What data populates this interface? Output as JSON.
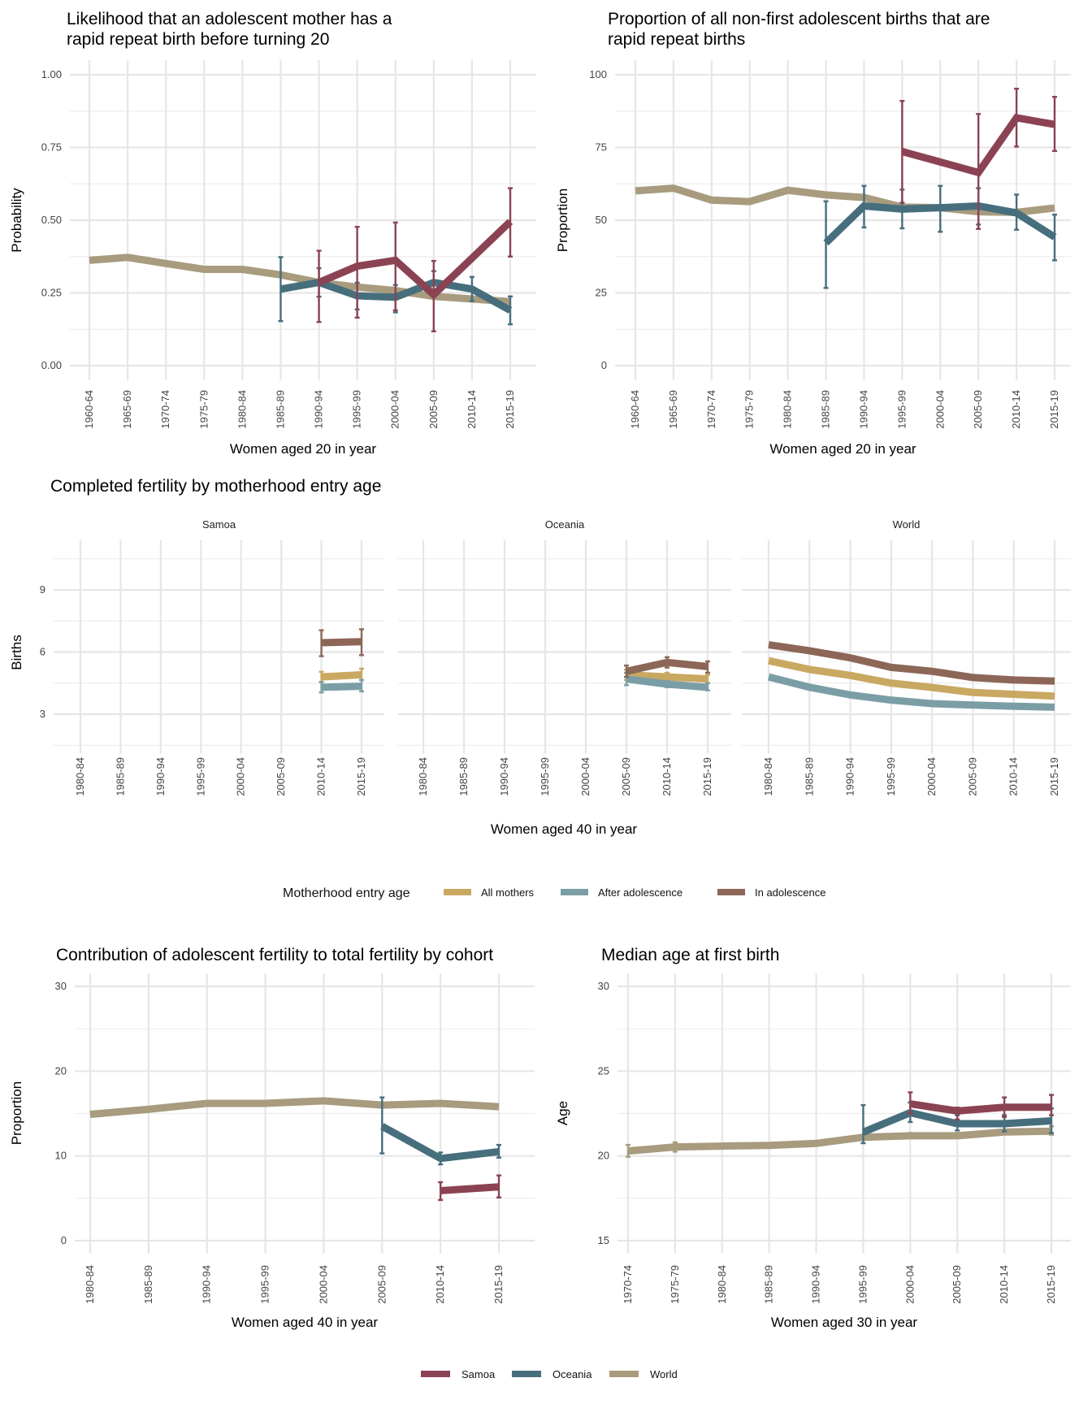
{
  "colors": {
    "Samoa": "#8B4353",
    "Oceania": "#476E7D",
    "World": "#A89B7E",
    "All mothers": "#C9A861",
    "After adolescence": "#7B9EA6",
    "In adolescence": "#8C6657"
  },
  "legend_bottom": {
    "entries": [
      "Samoa",
      "Oceania",
      "World"
    ]
  },
  "legend_fertility": {
    "title": "Motherhood entry age",
    "entries": [
      "All mothers",
      "After adolescence",
      "In adolescence"
    ]
  },
  "chart_data": [
    {
      "id": "rapid-repeat-likelihood",
      "type": "line",
      "title": [
        "Likelihood that an adolescent mother has a",
        "rapid repeat birth before turning 20"
      ],
      "xlabel": "Women aged 20 in year",
      "ylabel": "Probability",
      "categories": [
        "1960-64",
        "1965-69",
        "1970-74",
        "1975-79",
        "1980-84",
        "1985-89",
        "1990-94",
        "1995-99",
        "2000-04",
        "2005-09",
        "2010-14",
        "2015-19"
      ],
      "yticks": [
        "0.00",
        "0.25",
        "0.50",
        "0.75",
        "1.00"
      ],
      "ytick_values": [
        0,
        0.25,
        0.5,
        0.75,
        1.0
      ],
      "ylim": [
        -0.05,
        1.05
      ],
      "grid": true,
      "series": [
        {
          "name": "World",
          "values": [
            0.362,
            0.372,
            0.351,
            0.331,
            0.331,
            0.312,
            0.286,
            0.27,
            0.258,
            0.238,
            0.229,
            0.22
          ],
          "lo": [
            null,
            null,
            null,
            null,
            null,
            null,
            null,
            null,
            null,
            null,
            null,
            null
          ],
          "hi": [
            null,
            null,
            null,
            null,
            null,
            null,
            null,
            null,
            null,
            null,
            null,
            null
          ]
        },
        {
          "name": "Oceania",
          "values": [
            null,
            null,
            null,
            null,
            null,
            0.263,
            0.286,
            0.24,
            0.235,
            0.286,
            0.263,
            0.19
          ],
          "lo": [
            null,
            null,
            null,
            null,
            null,
            0.153,
            0.237,
            0.193,
            0.183,
            0.24,
            0.222,
            0.142
          ],
          "hi": [
            null,
            null,
            null,
            null,
            null,
            0.373,
            0.335,
            0.285,
            0.277,
            0.325,
            0.305,
            0.238
          ]
        },
        {
          "name": "Samoa",
          "values": [
            null,
            null,
            null,
            null,
            null,
            null,
            0.286,
            0.342,
            0.362,
            0.244,
            null,
            0.495
          ],
          "lo": [
            null,
            null,
            null,
            null,
            null,
            null,
            0.15,
            0.165,
            0.19,
            0.118,
            null,
            0.375
          ],
          "hi": [
            null,
            null,
            null,
            null,
            null,
            null,
            0.395,
            0.477,
            0.492,
            0.36,
            null,
            0.61
          ]
        }
      ]
    },
    {
      "id": "rapid-repeat-proportion",
      "type": "line",
      "title": [
        "Proportion of all non-first adolescent births that are",
        "rapid repeat births"
      ],
      "xlabel": "Women aged 20 in year",
      "ylabel": "Proportion",
      "categories": [
        "1960-64",
        "1965-69",
        "1970-74",
        "1975-79",
        "1980-84",
        "1985-89",
        "1990-94",
        "1995-99",
        "2000-04",
        "2005-09",
        "2010-14",
        "2015-19"
      ],
      "yticks": [
        "0",
        "25",
        "50",
        "75",
        "100"
      ],
      "ytick_values": [
        0,
        25,
        50,
        75,
        100
      ],
      "ylim": [
        -5,
        105
      ],
      "grid": true,
      "series": [
        {
          "name": "World",
          "values": [
            60.1,
            61.0,
            56.9,
            56.4,
            60.3,
            58.7,
            57.8,
            54.5,
            54.3,
            52.9,
            52.7,
            54.2
          ],
          "lo": [
            null,
            null,
            null,
            null,
            null,
            null,
            null,
            null,
            null,
            null,
            null,
            null
          ],
          "hi": [
            null,
            null,
            null,
            null,
            null,
            null,
            null,
            null,
            null,
            null,
            null,
            null
          ]
        },
        {
          "name": "Oceania",
          "values": [
            null,
            null,
            null,
            null,
            null,
            42.2,
            54.9,
            53.8,
            54.3,
            54.9,
            52.5,
            44.2
          ],
          "lo": [
            null,
            null,
            null,
            null,
            null,
            26.7,
            47.5,
            47.2,
            46.0,
            48.5,
            46.7,
            36.2
          ],
          "hi": [
            null,
            null,
            null,
            null,
            null,
            56.5,
            61.8,
            60.5,
            61.8,
            61.0,
            58.8,
            51.9
          ]
        },
        {
          "name": "Samoa",
          "values": [
            null,
            null,
            null,
            null,
            null,
            null,
            null,
            73.6,
            null,
            66.4,
            85.2,
            82.9
          ],
          "lo": [
            null,
            null,
            null,
            null,
            null,
            null,
            null,
            56.0,
            null,
            47.0,
            75.3,
            73.8
          ],
          "hi": [
            null,
            null,
            null,
            null,
            null,
            null,
            null,
            91.0,
            null,
            86.5,
            95.2,
            92.4
          ]
        }
      ]
    },
    {
      "id": "completed-fertility",
      "type": "line",
      "title": [
        "Completed fertility by motherhood entry age"
      ],
      "xlabel": "Women aged 40 in year",
      "ylabel": "Births",
      "categories": [
        "1980-84",
        "1985-89",
        "1990-94",
        "1995-99",
        "2000-04",
        "2005-09",
        "2010-14",
        "2015-19"
      ],
      "yticks": [
        "3",
        "6",
        "9"
      ],
      "ytick_values": [
        3,
        6,
        9
      ],
      "ylim": [
        1.1,
        11.4
      ],
      "grid": true,
      "facets": [
        {
          "name": "Samoa",
          "series": [
            {
              "name": "All mothers",
              "values": [
                null,
                null,
                null,
                null,
                null,
                null,
                4.8,
                4.9
              ],
              "lo": [
                null,
                null,
                null,
                null,
                null,
                null,
                4.55,
                4.65
              ],
              "hi": [
                null,
                null,
                null,
                null,
                null,
                null,
                5.05,
                5.2
              ]
            },
            {
              "name": "After adolescence",
              "values": [
                null,
                null,
                null,
                null,
                null,
                null,
                4.3,
                4.35
              ],
              "lo": [
                null,
                null,
                null,
                null,
                null,
                null,
                4.05,
                4.1
              ],
              "hi": [
                null,
                null,
                null,
                null,
                null,
                null,
                4.55,
                4.65
              ]
            },
            {
              "name": "In adolescence",
              "values": [
                null,
                null,
                null,
                null,
                null,
                null,
                6.45,
                6.5
              ],
              "lo": [
                null,
                null,
                null,
                null,
                null,
                null,
                5.8,
                5.85
              ],
              "hi": [
                null,
                null,
                null,
                null,
                null,
                null,
                7.05,
                7.1
              ]
            }
          ]
        },
        {
          "name": "Oceania",
          "series": [
            {
              "name": "All mothers",
              "values": [
                null,
                null,
                null,
                null,
                null,
                4.9,
                4.8,
                4.7
              ],
              "lo": [
                null,
                null,
                null,
                null,
                null,
                4.65,
                4.6,
                4.5
              ],
              "hi": [
                null,
                null,
                null,
                null,
                null,
                5.15,
                5.0,
                4.9
              ]
            },
            {
              "name": "After adolescence",
              "values": [
                null,
                null,
                null,
                null,
                null,
                4.7,
                4.45,
                4.3
              ],
              "lo": [
                null,
                null,
                null,
                null,
                null,
                4.4,
                4.3,
                4.15
              ],
              "hi": [
                null,
                null,
                null,
                null,
                null,
                5.0,
                4.6,
                4.5
              ]
            },
            {
              "name": "In adolescence",
              "values": [
                null,
                null,
                null,
                null,
                null,
                5.07,
                5.5,
                5.3
              ],
              "lo": [
                null,
                null,
                null,
                null,
                null,
                4.8,
                5.25,
                5.0
              ],
              "hi": [
                null,
                null,
                null,
                null,
                null,
                5.35,
                5.75,
                5.55
              ]
            }
          ]
        },
        {
          "name": "World",
          "series": [
            {
              "name": "All mothers",
              "values": [
                5.58,
                5.16,
                4.87,
                4.5,
                4.29,
                4.05,
                3.96,
                3.87
              ],
              "lo": [
                null,
                null,
                null,
                null,
                null,
                null,
                null,
                null
              ],
              "hi": [
                null,
                null,
                null,
                null,
                null,
                null,
                null,
                null
              ]
            },
            {
              "name": "After adolescence",
              "values": [
                4.8,
                4.3,
                3.93,
                3.68,
                3.51,
                3.44,
                3.38,
                3.34
              ],
              "lo": [
                null,
                null,
                null,
                null,
                null,
                null,
                null,
                null
              ],
              "hi": [
                null,
                null,
                null,
                null,
                null,
                null,
                null,
                null
              ]
            },
            {
              "name": "In adolescence",
              "values": [
                6.35,
                6.06,
                5.72,
                5.26,
                5.07,
                4.77,
                4.65,
                4.6
              ],
              "lo": [
                null,
                null,
                null,
                null,
                null,
                null,
                null,
                null
              ],
              "hi": [
                null,
                null,
                null,
                null,
                null,
                null,
                null,
                null
              ]
            }
          ]
        }
      ]
    },
    {
      "id": "adolescent-contribution",
      "type": "line",
      "title": [
        "Contribution of adolescent fertility to total fertility by cohort"
      ],
      "xlabel": "Women aged 40 in year",
      "ylabel": "Proportion",
      "categories": [
        "1980-84",
        "1985-89",
        "1990-94",
        "1995-99",
        "2000-04",
        "2005-09",
        "2010-14",
        "2015-19"
      ],
      "yticks": [
        "0",
        "10",
        "20",
        "30"
      ],
      "ytick_values": [
        0,
        10,
        20,
        30
      ],
      "ylim": [
        -1.5,
        31.5
      ],
      "grid": true,
      "series": [
        {
          "name": "World",
          "values": [
            14.9,
            15.5,
            16.2,
            16.2,
            16.5,
            16.0,
            16.2,
            15.8
          ],
          "lo": [
            null,
            null,
            null,
            null,
            null,
            null,
            null,
            null
          ],
          "hi": [
            null,
            null,
            null,
            null,
            null,
            null,
            null,
            null
          ]
        },
        {
          "name": "Oceania",
          "values": [
            null,
            null,
            null,
            null,
            null,
            13.5,
            9.7,
            10.5
          ],
          "lo": [
            null,
            null,
            null,
            null,
            null,
            10.3,
            9.0,
            9.8
          ],
          "hi": [
            null,
            null,
            null,
            null,
            null,
            16.9,
            10.4,
            11.3
          ]
        },
        {
          "name": "Samoa",
          "values": [
            null,
            null,
            null,
            null,
            null,
            null,
            5.9,
            6.35
          ],
          "lo": [
            null,
            null,
            null,
            null,
            null,
            null,
            4.8,
            5.1
          ],
          "hi": [
            null,
            null,
            null,
            null,
            null,
            null,
            6.9,
            7.7
          ]
        }
      ]
    },
    {
      "id": "median-age-first-birth",
      "type": "line",
      "title": [
        "Median age at first birth"
      ],
      "xlabel": "Women aged 30 in year",
      "ylabel": "Age",
      "categories": [
        "1970-74",
        "1975-79",
        "1980-84",
        "1985-89",
        "1990-94",
        "1995-99",
        "2000-04",
        "2005-09",
        "2010-14",
        "2015-19"
      ],
      "yticks": [
        "15",
        "20",
        "25",
        "30"
      ],
      "ytick_values": [
        15,
        20,
        25,
        30
      ],
      "ylim": [
        14.25,
        30.75
      ],
      "grid": true,
      "series": [
        {
          "name": "World",
          "values": [
            20.29,
            20.53,
            20.58,
            20.62,
            20.74,
            21.1,
            21.19,
            21.19,
            21.41,
            21.46
          ],
          "lo": [
            19.95,
            20.25,
            20.45,
            20.5,
            20.65,
            20.95,
            21.05,
            21.05,
            21.3,
            21.25
          ],
          "hi": [
            20.65,
            20.8,
            20.7,
            20.75,
            20.85,
            21.25,
            21.35,
            21.35,
            21.55,
            21.75
          ]
        },
        {
          "name": "Oceania",
          "values": [
            null,
            null,
            null,
            null,
            null,
            21.4,
            22.55,
            21.9,
            21.9,
            22.07
          ],
          "lo": [
            null,
            null,
            null,
            null,
            null,
            20.75,
            22.0,
            21.5,
            21.45,
            21.35
          ],
          "hi": [
            null,
            null,
            null,
            null,
            null,
            23.0,
            23.15,
            22.4,
            22.4,
            22.8
          ]
        },
        {
          "name": "Samoa",
          "values": [
            null,
            null,
            null,
            null,
            null,
            null,
            23.07,
            22.65,
            22.87,
            22.87
          ],
          "lo": [
            null,
            null,
            null,
            null,
            null,
            null,
            22.5,
            22.15,
            22.3,
            22.4
          ],
          "hi": [
            null,
            null,
            null,
            null,
            null,
            null,
            23.75,
            22.85,
            23.45,
            23.6
          ]
        }
      ]
    }
  ]
}
